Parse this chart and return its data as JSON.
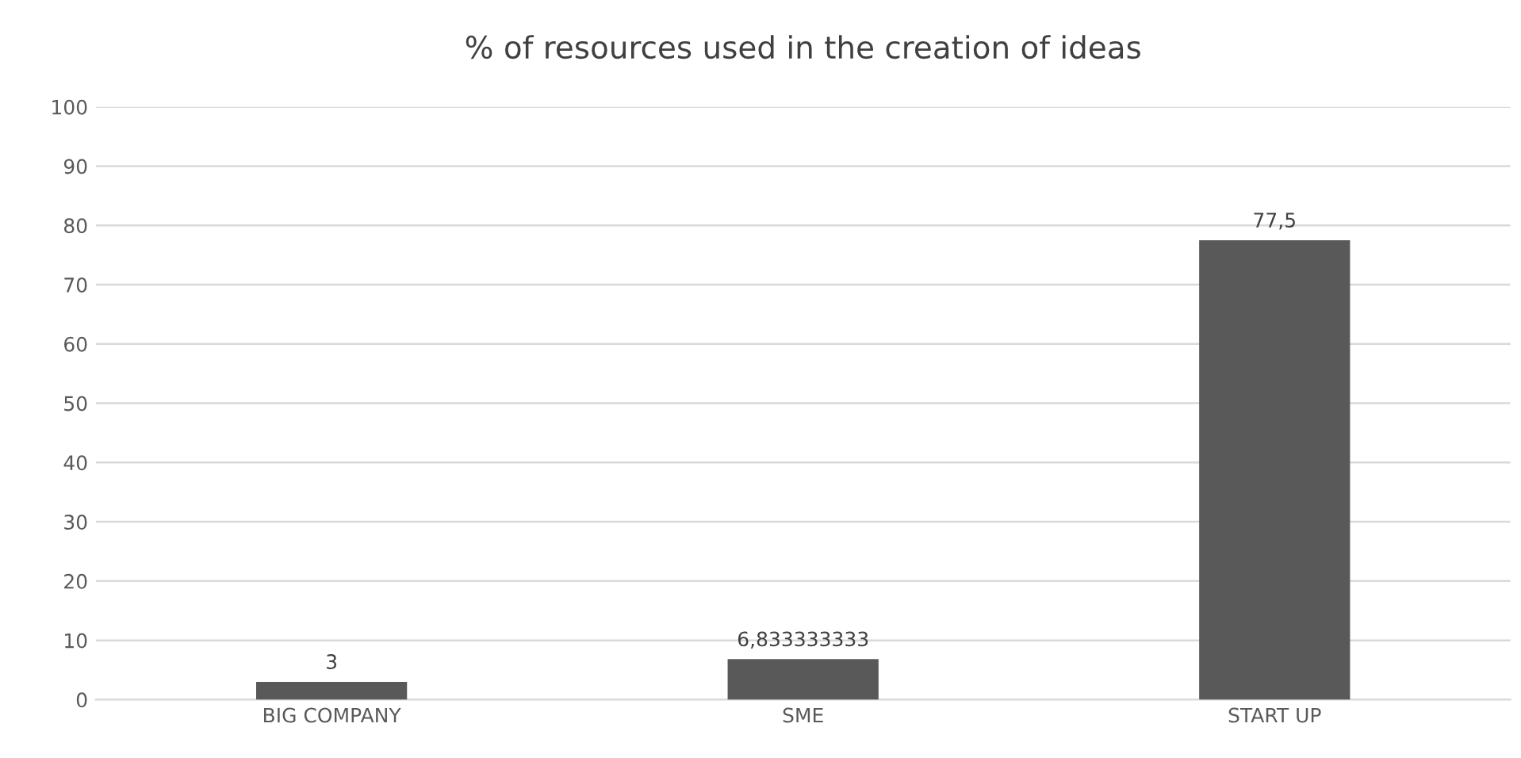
{
  "chart_data": {
    "type": "bar",
    "title": "% of resources used in the creation of ideas",
    "categories": [
      "BIG COMPANY",
      "SME",
      "START UP"
    ],
    "values": [
      3,
      6.833333333,
      77.5
    ],
    "value_labels": [
      "3",
      "6,833333333",
      "77,5"
    ],
    "color": "#595959",
    "ylim": [
      0,
      100
    ],
    "yticks": [
      0,
      10,
      20,
      30,
      40,
      50,
      60,
      70,
      80,
      90,
      100
    ],
    "grid": "y",
    "legend": false
  }
}
